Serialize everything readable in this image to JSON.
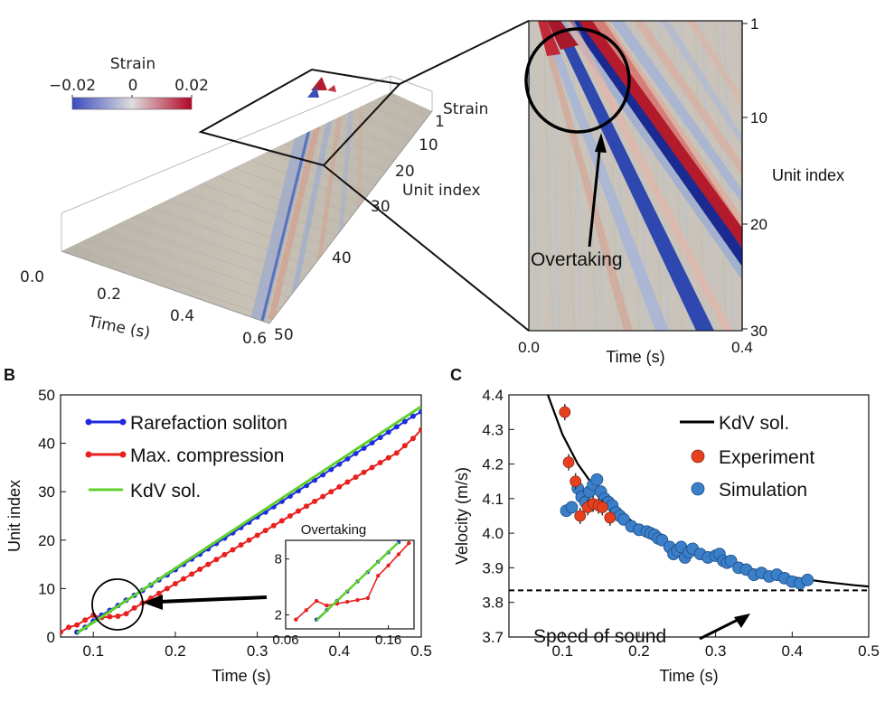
{
  "panelA": {
    "colorbar": {
      "title": "Strain",
      "min_label": "−0.02",
      "mid_label": "0",
      "max_label": "0.02",
      "colors": [
        "#3b4cc0",
        "#dddddd",
        "#b40426"
      ]
    },
    "surface": {
      "z_label": "Strain",
      "z_tick": "1",
      "unit_label": "Unit index",
      "unit_ticks": [
        "10",
        "20",
        "30",
        "40",
        "50"
      ],
      "time_label": "Time (s)",
      "time_ticks": [
        "0.0",
        "0.2",
        "0.4",
        "0.6"
      ]
    },
    "zoom": {
      "unit_label": "Unit index",
      "unit_ticks": [
        "1",
        "10",
        "20",
        "30"
      ],
      "time_label": "Time (s)",
      "time_ticks": [
        "0.0",
        "0.4"
      ],
      "annotation": "Overtaking"
    }
  },
  "chart_data": [
    {
      "panel": "B",
      "type": "line",
      "xlabel": "Time (s)",
      "ylabel": "Unit index",
      "xlim": [
        0.06,
        0.5
      ],
      "ylim": [
        0,
        50
      ],
      "xticks": [
        "0.1",
        "0.2",
        "0.3",
        "0.4",
        "0.5"
      ],
      "yticks": [
        "0",
        "10",
        "20",
        "30",
        "40",
        "50"
      ],
      "legend_position": "top-left",
      "series": [
        {
          "name": "Rarefaction soliton",
          "color": "#1f2be0",
          "marker": "dot",
          "x": [
            0.08,
            0.09,
            0.1,
            0.11,
            0.12,
            0.13,
            0.14,
            0.15,
            0.16,
            0.17,
            0.18,
            0.19,
            0.2,
            0.21,
            0.22,
            0.23,
            0.24,
            0.25,
            0.26,
            0.27,
            0.28,
            0.29,
            0.3,
            0.31,
            0.32,
            0.33,
            0.34,
            0.35,
            0.36,
            0.37,
            0.38,
            0.39,
            0.4,
            0.41,
            0.42,
            0.43,
            0.44,
            0.45,
            0.46,
            0.47,
            0.48,
            0.49,
            0.5
          ],
          "y": [
            1,
            2,
            3.3,
            4.5,
            5.5,
            6.5,
            7.6,
            8.6,
            9.6,
            10.7,
            11.8,
            12.8,
            13.9,
            15,
            16.1,
            17.1,
            18.2,
            19.3,
            20.4,
            21.5,
            22.6,
            23.7,
            24.8,
            25.8,
            26.9,
            28,
            29.1,
            30.2,
            31.3,
            32.4,
            33.5,
            34.6,
            35.7,
            36.8,
            37.9,
            39,
            40.1,
            41.2,
            42.3,
            43.4,
            44.5,
            45.6,
            46.5
          ]
        },
        {
          "name": "Max. compression",
          "color": "#e8211f",
          "marker": "dot",
          "x": [
            0.06,
            0.07,
            0.08,
            0.09,
            0.1,
            0.11,
            0.12,
            0.13,
            0.14,
            0.15,
            0.16,
            0.17,
            0.18,
            0.19,
            0.2,
            0.21,
            0.22,
            0.23,
            0.24,
            0.25,
            0.26,
            0.27,
            0.28,
            0.29,
            0.3,
            0.31,
            0.32,
            0.33,
            0.34,
            0.35,
            0.36,
            0.37,
            0.38,
            0.39,
            0.4,
            0.41,
            0.42,
            0.43,
            0.44,
            0.45,
            0.46,
            0.47,
            0.48,
            0.49,
            0.5
          ],
          "y": [
            1,
            2,
            2.5,
            3.5,
            4.5,
            4,
            4.2,
            4.3,
            4.8,
            6,
            7,
            8,
            9,
            10,
            11,
            12,
            13,
            14,
            15,
            16,
            17,
            18,
            19,
            20,
            21,
            22,
            23,
            24,
            25,
            26,
            27,
            28,
            29,
            30,
            31,
            32,
            33,
            34,
            35,
            36,
            37,
            38,
            39.5,
            41,
            42.8
          ]
        },
        {
          "name": "KdV sol.",
          "color": "#5fd12a",
          "marker": "none",
          "x": [
            0.08,
            0.5
          ],
          "y": [
            0.8,
            47.6
          ]
        }
      ],
      "annotation": "",
      "inset": {
        "title": "Overtaking",
        "xlim": [
          0.06,
          0.185
        ],
        "ylim": [
          0.5,
          10
        ],
        "xticks": [
          "0.06",
          "0.16"
        ],
        "yticks": [
          "2",
          "8"
        ],
        "series": [
          {
            "name": "Rarefaction soliton",
            "color": "#1f2be0",
            "x": [
              0.09,
              0.1,
              0.11,
              0.12,
              0.13,
              0.14,
              0.15,
              0.16,
              0.17
            ],
            "y": [
              1.5,
              2.5,
              3.5,
              4.5,
              5.6,
              6.6,
              7.7,
              8.7,
              9.8
            ]
          },
          {
            "name": "Max. compression",
            "color": "#e8211f",
            "x": [
              0.07,
              0.08,
              0.09,
              0.1,
              0.11,
              0.12,
              0.13,
              0.14,
              0.15,
              0.16,
              0.17,
              0.18
            ],
            "y": [
              1.5,
              2.5,
              3.5,
              3.0,
              3.2,
              3.4,
              3.6,
              3.8,
              6.2,
              7.3,
              8.5,
              9.7
            ]
          },
          {
            "name": "KdV sol.",
            "color": "#5fd12a",
            "x": [
              0.09,
              0.17
            ],
            "y": [
              1.4,
              9.8
            ]
          }
        ]
      }
    },
    {
      "panel": "C",
      "type": "scatter",
      "xlabel": "Time (s)",
      "ylabel": "Velocity (m/s)",
      "xlim": [
        0.03,
        0.5
      ],
      "ylim": [
        3.7,
        4.4
      ],
      "xticks": [
        "0.1",
        "0.2",
        "0.3",
        "0.4",
        "0.5"
      ],
      "yticks": [
        "3.7",
        "3.8",
        "3.9",
        "4.0",
        "4.1",
        "4.2",
        "4.3",
        "4.4"
      ],
      "legend_position": "top-right",
      "speed_of_sound": 3.835,
      "speed_of_sound_label": "Speed of sound",
      "series": [
        {
          "name": "KdV sol.",
          "color": "#000000",
          "type": "line",
          "x": [
            0.08,
            0.1,
            0.12,
            0.14,
            0.16,
            0.18,
            0.2,
            0.22,
            0.24,
            0.26,
            0.28,
            0.3,
            0.32,
            0.34,
            0.36,
            0.38,
            0.4,
            0.42,
            0.44,
            0.46,
            0.48,
            0.5
          ],
          "y": [
            4.405,
            4.285,
            4.2,
            4.138,
            4.09,
            4.052,
            4.02,
            3.994,
            3.972,
            3.953,
            3.937,
            3.923,
            3.911,
            3.9,
            3.89,
            3.882,
            3.873,
            3.866,
            3.86,
            3.855,
            3.85,
            3.846
          ]
        },
        {
          "name": "Experiment",
          "color": "#e8401f",
          "type": "scatter",
          "x": [
            0.103,
            0.108,
            0.117,
            0.123,
            0.133,
            0.14,
            0.147,
            0.152,
            0.162
          ],
          "y": [
            4.35,
            4.205,
            4.15,
            4.05,
            4.075,
            4.085,
            4.08,
            4.075,
            4.045
          ]
        },
        {
          "name": "Simulation",
          "color": "#3a7fc8",
          "type": "scatter",
          "x": [
            0.105,
            0.112,
            0.12,
            0.125,
            0.13,
            0.135,
            0.14,
            0.145,
            0.15,
            0.155,
            0.16,
            0.165,
            0.17,
            0.175,
            0.18,
            0.19,
            0.2,
            0.21,
            0.215,
            0.22,
            0.225,
            0.23,
            0.24,
            0.245,
            0.25,
            0.255,
            0.26,
            0.265,
            0.27,
            0.28,
            0.29,
            0.3,
            0.305,
            0.31,
            0.315,
            0.32,
            0.33,
            0.34,
            0.35,
            0.36,
            0.37,
            0.38,
            0.39,
            0.4,
            0.41,
            0.42
          ],
          "y": [
            4.065,
            4.075,
            4.13,
            4.105,
            4.09,
            4.12,
            4.14,
            4.155,
            4.12,
            4.1,
            4.09,
            4.08,
            4.06,
            4.05,
            4.04,
            4.02,
            4.01,
            4.005,
            4.0,
            3.995,
            3.985,
            3.98,
            3.96,
            3.94,
            3.95,
            3.96,
            3.93,
            3.945,
            3.955,
            3.94,
            3.93,
            3.935,
            3.94,
            3.92,
            3.915,
            3.92,
            3.9,
            3.895,
            3.88,
            3.885,
            3.875,
            3.88,
            3.87,
            3.86,
            3.855,
            3.865
          ]
        }
      ]
    }
  ],
  "panel_labels": {
    "b": "B",
    "c": "C"
  }
}
